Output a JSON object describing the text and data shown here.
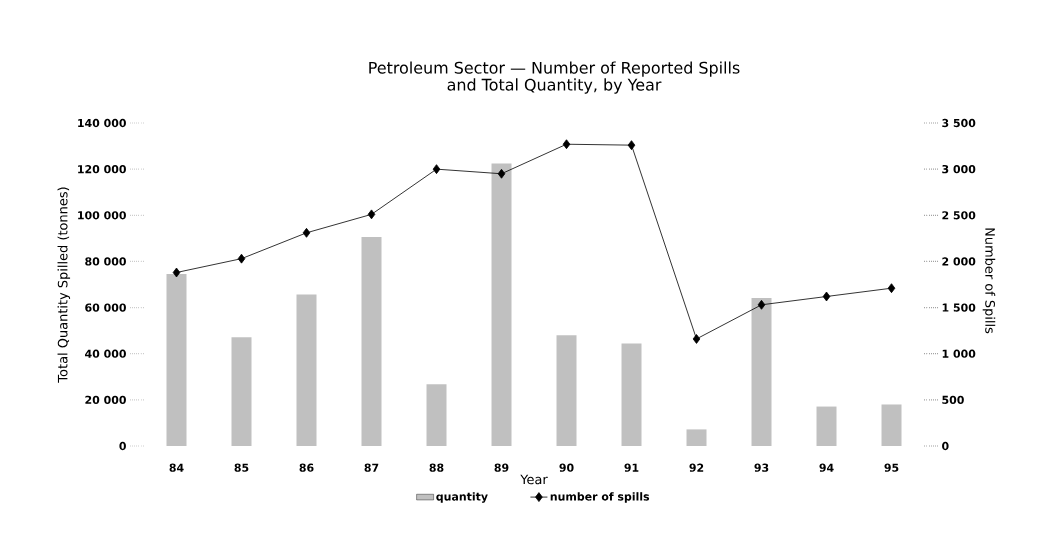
{
  "chart_data": {
    "type": "bar",
    "title": "Petroleum Sector — Number of Reported Spills\nand Total Quantity, by Year",
    "xlabel": "Year",
    "ylabel": "Total Quantity Spilled (tonnes)",
    "y2label": "Number of Spills",
    "categories": [
      "84",
      "85",
      "86",
      "87",
      "88",
      "89",
      "90",
      "91",
      "92",
      "93",
      "94",
      "95"
    ],
    "series": [
      {
        "name": "quantity",
        "color": "#c0c0c0",
        "values": [
          74500,
          47100,
          65700,
          90600,
          26800,
          122500,
          48000,
          44400,
          7200,
          64100,
          17100,
          18000
        ]
      },
      {
        "name": "number of spills",
        "type": "line",
        "axis": "y2",
        "color": "#000000",
        "marker": "diamond",
        "values": [
          1880,
          2030,
          2310,
          2510,
          3000,
          2950,
          3270,
          3260,
          1160,
          1530,
          1620,
          1710
        ]
      }
    ],
    "ylim": [
      0,
      140000
    ],
    "yticks": [
      {
        "value": 0,
        "label": "0"
      },
      {
        "value": 20000,
        "label": "20 000"
      },
      {
        "value": 40000,
        "label": "40 000"
      },
      {
        "value": 60000,
        "label": "60 000"
      },
      {
        "value": 80000,
        "label": "80 000"
      },
      {
        "value": 100000,
        "label": "100 000"
      },
      {
        "value": 120000,
        "label": "120 000"
      },
      {
        "value": 140000,
        "label": "140 000"
      }
    ],
    "y2lim": [
      0,
      3500
    ],
    "y2ticks": [
      0,
      500,
      {
        "value": 1000,
        "label": "1 000"
      },
      {
        "value": 1500,
        "label": "1 500"
      },
      {
        "value": 2000,
        "label": "2 000"
      },
      {
        "value": 2500,
        "label": "2 500"
      },
      {
        "value": 3000,
        "label": "3 000"
      },
      {
        "value": 3500,
        "label": "3 500"
      }
    ],
    "legend": "bottom",
    "grid": false
  }
}
